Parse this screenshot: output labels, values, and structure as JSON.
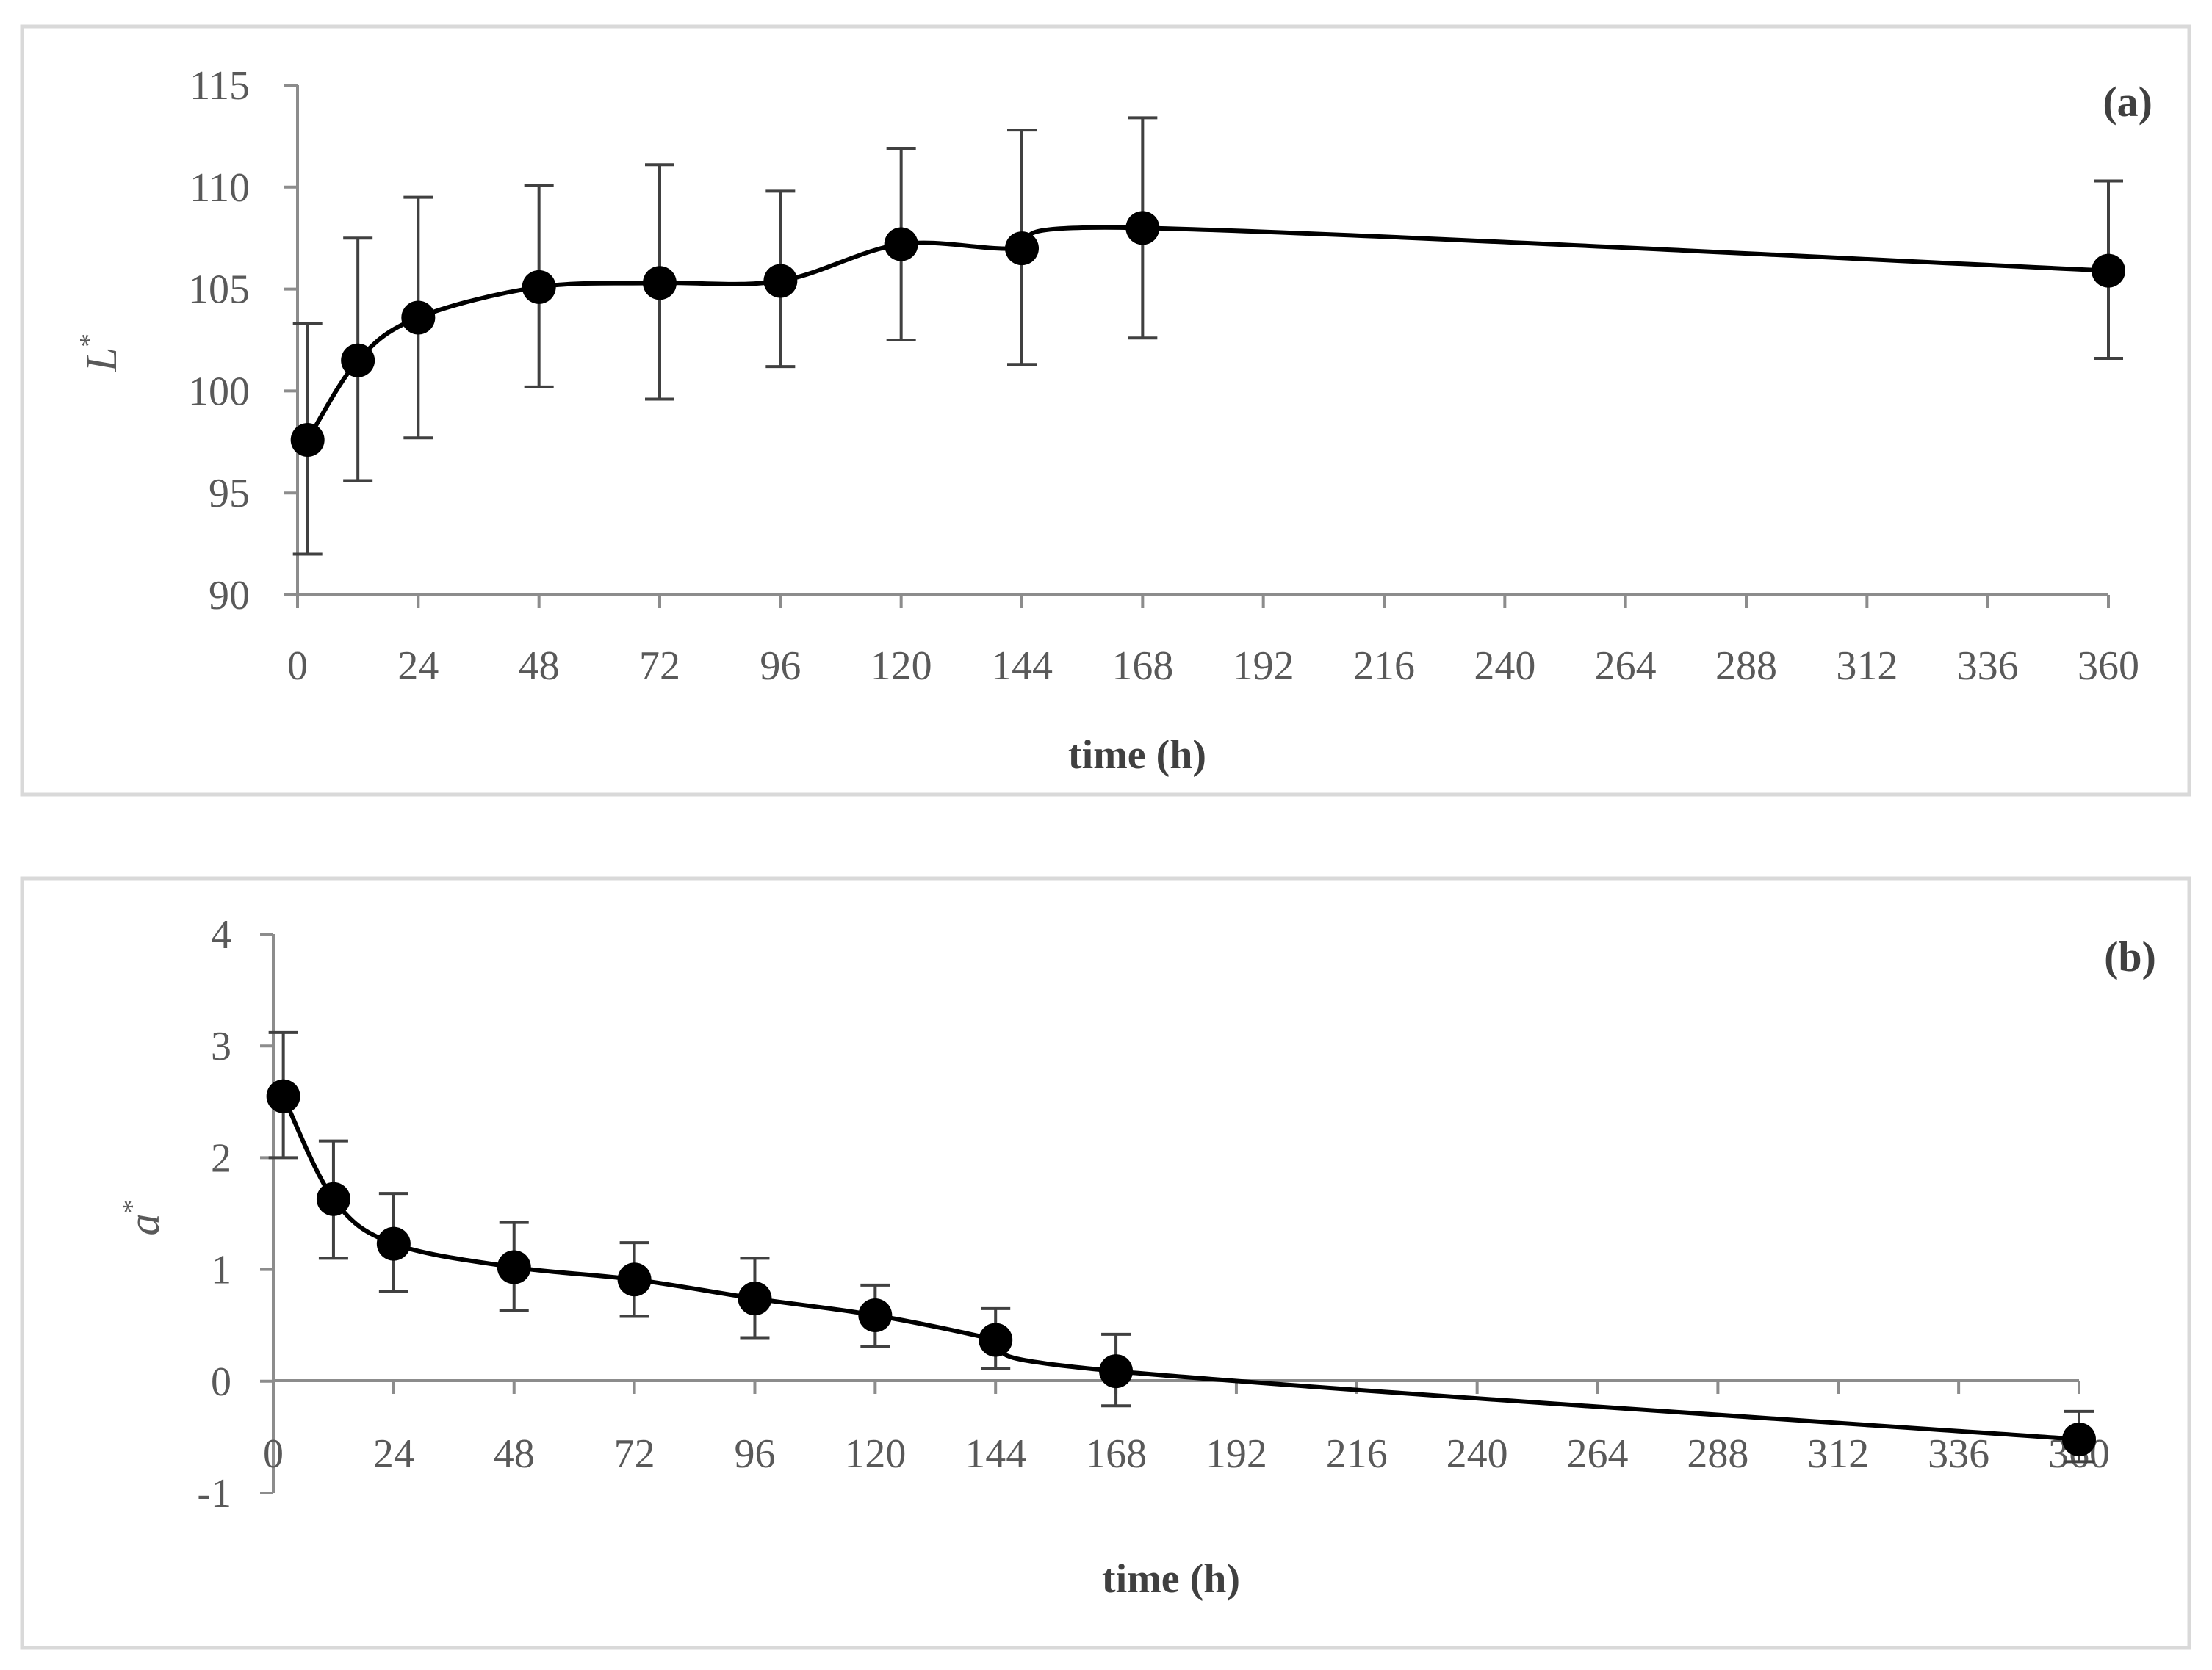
{
  "chart_data": [
    {
      "type": "line",
      "panel_label": "(a)",
      "title": "",
      "xlabel": "time (h)",
      "ylabel": "L",
      "ylabel_superscript": "*",
      "xlim": [
        0,
        360
      ],
      "ylim": [
        90,
        115
      ],
      "x_ticks": [
        0,
        24,
        48,
        72,
        96,
        120,
        144,
        168,
        192,
        216,
        240,
        264,
        288,
        312,
        336,
        360
      ],
      "y_ticks": [
        90,
        95,
        100,
        105,
        110,
        115
      ],
      "grid": false,
      "series": [
        {
          "name": "L*",
          "x": [
            2,
            12,
            24,
            48,
            72,
            96,
            120,
            144,
            168,
            360
          ],
          "y": [
            97.6,
            101.5,
            103.6,
            105.1,
            105.3,
            105.4,
            107.2,
            107.0,
            108.0,
            105.9
          ],
          "err_upper": [
            103.3,
            107.5,
            109.5,
            110.1,
            111.1,
            109.8,
            111.9,
            112.8,
            113.4,
            110.3
          ],
          "err_lower": [
            92.0,
            95.6,
            97.7,
            100.2,
            99.6,
            101.2,
            102.5,
            101.3,
            102.6,
            101.6
          ]
        }
      ]
    },
    {
      "type": "line",
      "panel_label": "(b)",
      "title": "",
      "xlabel": "time (h)",
      "ylabel": "a",
      "ylabel_superscript": "*",
      "xlim": [
        0,
        360
      ],
      "ylim": [
        -1,
        4
      ],
      "x_ticks": [
        0,
        24,
        48,
        72,
        96,
        120,
        144,
        168,
        192,
        216,
        240,
        264,
        288,
        312,
        336,
        360
      ],
      "y_ticks": [
        -1,
        0,
        1,
        2,
        3,
        4
      ],
      "grid": false,
      "series": [
        {
          "name": "a*",
          "x": [
            2,
            12,
            24,
            48,
            72,
            96,
            120,
            144,
            168,
            360
          ],
          "y": [
            2.55,
            1.63,
            1.23,
            1.02,
            0.91,
            0.74,
            0.59,
            0.37,
            0.09,
            -0.52
          ],
          "err_upper": [
            3.12,
            2.15,
            1.68,
            1.42,
            1.24,
            1.1,
            0.86,
            0.65,
            0.42,
            -0.27
          ],
          "err_lower": [
            2.0,
            1.1,
            0.8,
            0.63,
            0.58,
            0.39,
            0.31,
            0.11,
            -0.22,
            -0.72
          ]
        }
      ]
    }
  ]
}
